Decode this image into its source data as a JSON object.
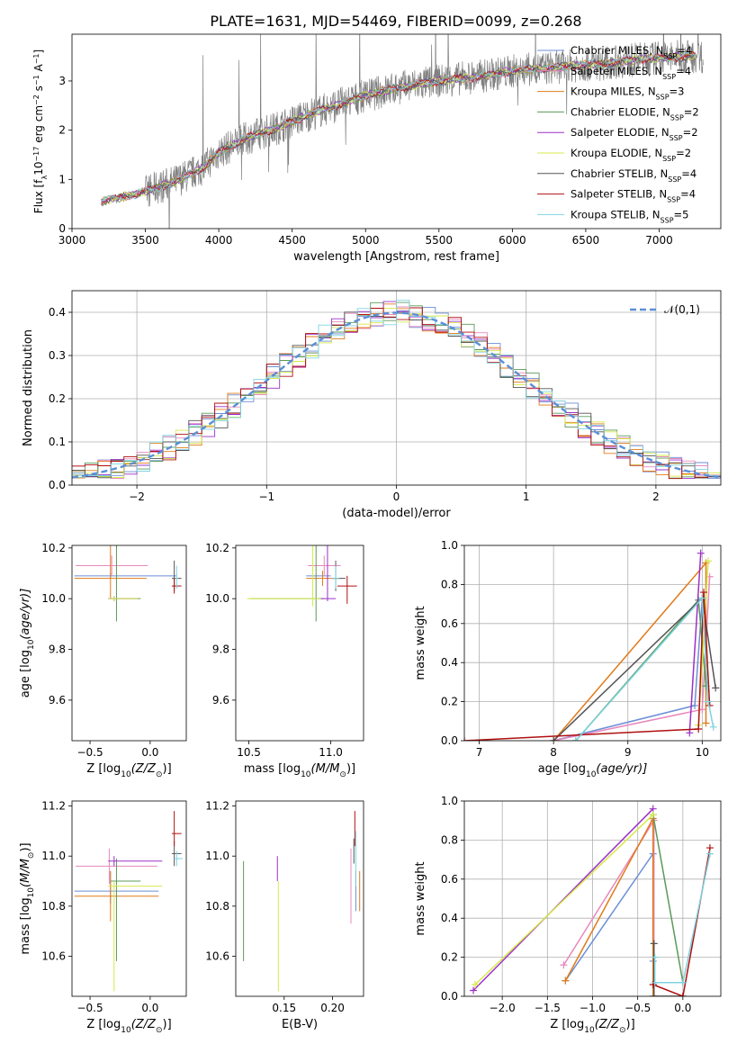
{
  "figure_title": "PLATE=1631, MJD=54469, FIBERID=0099, z=0.268",
  "series": [
    {
      "key": "cm",
      "label": "Chabrier MILES, N",
      "sub": "SSP",
      "suffix": "=4",
      "color": "#6b8fd6"
    },
    {
      "key": "sm",
      "label": "Salpeter MILES, N",
      "sub": "SSP",
      "suffix": "=4",
      "color": "#e889bd"
    },
    {
      "key": "km",
      "label": "Kroupa MILES, N",
      "sub": "SSP",
      "suffix": "=3",
      "color": "#e07b1a"
    },
    {
      "key": "ce",
      "label": "Chabrier ELODIE, N",
      "sub": "SSP",
      "suffix": "=2",
      "color": "#5a9a5a"
    },
    {
      "key": "se",
      "label": "Salpeter ELODIE, N",
      "sub": "SSP",
      "suffix": "=2",
      "color": "#9b30c8"
    },
    {
      "key": "ke",
      "label": "Kroupa ELODIE, N",
      "sub": "SSP",
      "suffix": "=2",
      "color": "#d6e84a"
    },
    {
      "key": "cs",
      "label": "Chabrier STELIB, N",
      "sub": "SSP",
      "suffix": "=4",
      "color": "#555555"
    },
    {
      "key": "ss",
      "label": "Salpeter STELIB, N",
      "sub": "SSP",
      "suffix": "=4",
      "color": "#b01010"
    },
    {
      "key": "ks",
      "label": "Kroupa STELIB, N",
      "sub": "SSP",
      "suffix": "=5",
      "color": "#7fd3e0"
    }
  ],
  "chart_data": [
    {
      "id": "spectrum",
      "type": "line",
      "xlabel": "wavelength [Angstrom, rest frame]",
      "ylabel": "Flux [f",
      "ylabel_sub": "λ",
      "ylabel_rest": "10",
      "ylabel_exp1": "−17",
      "ylabel_mid": " erg cm",
      "ylabel_exp2": "−2",
      "ylabel_mid2": " s",
      "ylabel_exp3": "−1",
      "ylabel_end": " A",
      "ylabel_exp4": "−1",
      "ylabel_close": "]",
      "xlim": [
        3000,
        7420
      ],
      "ylim": [
        0,
        3.95
      ],
      "xticks": [
        "3000",
        "3500",
        "4000",
        "4500",
        "5000",
        "5500",
        "6000",
        "6500",
        "7000"
      ],
      "yticks": [
        "0",
        "1",
        "2",
        "3"
      ],
      "data_color": "#808080",
      "continuum": {
        "x": [
          3200,
          3500,
          3600,
          3700,
          3800,
          3900,
          4000,
          4200,
          4400,
          4600,
          4800,
          5000,
          5200,
          5500,
          5800,
          6000,
          6300,
          6600,
          6900,
          7200
        ],
        "y": [
          0.55,
          0.75,
          0.85,
          0.95,
          1.1,
          1.25,
          1.55,
          1.85,
          2.05,
          2.3,
          2.5,
          2.7,
          2.85,
          3.0,
          3.1,
          3.2,
          3.28,
          3.35,
          3.45,
          3.5
        ]
      },
      "grid": false,
      "legend": "top-right"
    },
    {
      "id": "residuals",
      "type": "step",
      "xlabel": "(data-model)/error",
      "ylabel": "Normed distribution",
      "xlim": [
        -2.5,
        2.5
      ],
      "ylim": [
        0,
        0.45
      ],
      "xticks": [
        "−2",
        "−1",
        "0",
        "1",
        "2"
      ],
      "yticks": [
        "0.0",
        "0.1",
        "0.2",
        "0.3",
        "0.4"
      ],
      "bin_width": 0.1,
      "reference": {
        "label": "𝒩(0,1)",
        "mu": 0,
        "sigma": 1,
        "color": "#5b8fd6"
      },
      "grid": true,
      "legend": "top-right"
    },
    {
      "id": "age_vs_Z",
      "type": "errorbar",
      "xlabel": "Z [log",
      "xlabel_sub": "10",
      "xlabel_rest": "(Z/Z",
      "xlabel_sun": "⊙",
      "xlabel_close": ")]",
      "ylabel": "age  [log",
      "ylabel_sub": "10",
      "ylabel_rest": "(age/yr)]",
      "xlim": [
        -0.65,
        0.3
      ],
      "ylim": [
        9.44,
        10.21
      ],
      "xticks": [
        "−0.5",
        "0.0"
      ],
      "yticks": [
        "9.6",
        "9.8",
        "10.0",
        "10.2"
      ],
      "points": [
        {
          "s": "cm",
          "x": -0.33,
          "y": 10.09,
          "xerr": [
            0.3,
            0.55
          ],
          "yerr": [
            0.01,
            0.01
          ]
        },
        {
          "s": "sm",
          "x": -0.32,
          "y": 10.13,
          "xerr": [
            0.3,
            0.3
          ],
          "yerr": [
            0.04,
            0.04
          ]
        },
        {
          "s": "km",
          "x": -0.33,
          "y": 10.08,
          "xerr": [
            0.3,
            0.3
          ],
          "yerr": [
            0.08,
            0.6
          ]
        },
        {
          "s": "ce",
          "x": -0.28,
          "y": 10.0,
          "xerr": [
            0.05,
            0.2
          ],
          "yerr": [
            0.09,
            0.42
          ]
        },
        {
          "s": "se",
          "x": -0.3,
          "y": 10.0,
          "xerr": [
            0.05,
            0.2
          ],
          "yerr": [
            0.01,
            0.01
          ]
        },
        {
          "s": "ke",
          "x": -0.3,
          "y": 10.0,
          "xerr": [
            0.05,
            0.2
          ],
          "yerr": [
            0.01,
            0.01
          ]
        },
        {
          "s": "cs",
          "x": 0.2,
          "y": 10.08,
          "xerr": [
            0.02,
            0.06
          ],
          "yerr": [
            0.05,
            0.07
          ]
        },
        {
          "s": "ss",
          "x": 0.2,
          "y": 10.05,
          "xerr": [
            0.02,
            0.06
          ],
          "yerr": [
            0.03,
            0.03
          ]
        },
        {
          "s": "ks",
          "x": 0.22,
          "y": 10.08,
          "xerr": [
            0.01,
            0.01
          ],
          "yerr": [
            0.04,
            0.05
          ]
        }
      ]
    },
    {
      "id": "age_vs_mass",
      "type": "errorbar",
      "xlabel": "mass [log",
      "xlabel_sub": "10",
      "xlabel_rest": "(M/M",
      "xlabel_sun": "⊙",
      "xlabel_close": ")]",
      "xlim": [
        10.42,
        11.2
      ],
      "ylim": [
        9.44,
        10.21
      ],
      "xticks": [
        "10.5",
        "11.0"
      ],
      "yticks": [
        "9.6",
        "9.8",
        "10.0",
        "10.2"
      ],
      "points": [
        {
          "s": "cm",
          "x": 10.95,
          "y": 10.09,
          "xerr": [
            0.1,
            0.05
          ],
          "yerr": [
            0.01,
            0.01
          ]
        },
        {
          "s": "sm",
          "x": 10.96,
          "y": 10.13,
          "xerr": [
            0.1,
            0.1
          ],
          "yerr": [
            0.04,
            0.04
          ]
        },
        {
          "s": "km",
          "x": 10.95,
          "y": 10.08,
          "xerr": [
            0.1,
            0.1
          ],
          "yerr": [
            0.03,
            0.03
          ]
        },
        {
          "s": "ce",
          "x": 10.91,
          "y": 10.0,
          "xerr": [
            0.4,
            0.05
          ],
          "yerr": [
            0.09,
            0.42
          ]
        },
        {
          "s": "se",
          "x": 10.98,
          "y": 10.0,
          "xerr": [
            0.05,
            0.05
          ],
          "yerr": [
            0.01,
            0.52
          ]
        },
        {
          "s": "ke",
          "x": 10.89,
          "y": 10.0,
          "xerr": [
            0.4,
            0.05
          ],
          "yerr": [
            0.03,
            0.53
          ]
        },
        {
          "s": "cs",
          "x": 11.03,
          "y": 10.08,
          "xerr": [
            0.02,
            0.06
          ],
          "yerr": [
            0.05,
            0.07
          ]
        },
        {
          "s": "ss",
          "x": 11.1,
          "y": 10.05,
          "xerr": [
            0.06,
            0.06
          ],
          "yerr": [
            0.07,
            0.04
          ]
        },
        {
          "s": "ks",
          "x": 11.03,
          "y": 10.08,
          "xerr": [
            0.02,
            0.02
          ],
          "yerr": [
            0.04,
            0.05
          ]
        }
      ]
    },
    {
      "id": "weight_vs_age",
      "type": "line",
      "xlabel": "age  [log",
      "xlabel_sub": "10",
      "xlabel_rest": "(age/yr)]",
      "ylabel": "mass weight",
      "xlim": [
        6.8,
        10.25
      ],
      "ylim": [
        0,
        1
      ],
      "xticks": [
        "7",
        "8",
        "9",
        "10"
      ],
      "yticks": [
        "0.0",
        "0.2",
        "0.4",
        "0.6",
        "0.8",
        "1.0"
      ],
      "grid": true,
      "lines": [
        {
          "s": "cm",
          "x": [
            8.0,
            9.9,
            10.0
          ],
          "y": [
            0.0,
            0.18,
            0.72
          ]
        },
        {
          "s": "sm",
          "x": [
            8.0,
            10.0,
            10.1
          ],
          "y": [
            0.0,
            0.16,
            0.84
          ]
        },
        {
          "s": "km",
          "x": [
            8.0,
            10.05,
            10.05
          ],
          "y": [
            0.0,
            0.91,
            0.09
          ]
        },
        {
          "s": "ce",
          "x": [
            8.3,
            9.95,
            10.05
          ],
          "y": [
            0.0,
            0.72,
            0.28
          ]
        },
        {
          "s": "se",
          "x": [
            9.83,
            9.98
          ],
          "y": [
            0.04,
            0.96
          ]
        },
        {
          "s": "ke",
          "x": [
            9.95,
            10.08
          ],
          "y": [
            0.08,
            0.92
          ]
        },
        {
          "s": "cs",
          "x": [
            8.0,
            10.0,
            10.18
          ],
          "y": [
            0.0,
            0.73,
            0.27
          ]
        },
        {
          "s": "ss",
          "x": [
            6.8,
            9.95,
            10.02,
            10.1
          ],
          "y": [
            0.0,
            0.06,
            0.76,
            0.18
          ]
        },
        {
          "s": "ks",
          "x": [
            8.3,
            10.0,
            10.08,
            10.15
          ],
          "y": [
            0.0,
            0.73,
            0.2,
            0.07
          ]
        }
      ]
    },
    {
      "id": "mass_vs_Z",
      "type": "errorbar",
      "xlabel": "Z [log",
      "xlabel_sub": "10",
      "xlabel_rest": "(Z/Z",
      "xlabel_sun": "⊙",
      "xlabel_close": ")]",
      "ylabel": "mass [log",
      "ylabel_sub": "10",
      "ylabel_rest": "(M/M",
      "ylabel_sun": "⊙",
      "ylabel_close": ")]",
      "xlim": [
        -0.65,
        0.3
      ],
      "ylim": [
        10.44,
        11.22
      ],
      "xticks": [
        "−0.5",
        "0.0"
      ],
      "yticks": [
        "10.6",
        "10.8",
        "11.0",
        "11.2"
      ],
      "points": [
        {
          "s": "cm",
          "x": -0.33,
          "y": 10.86,
          "xerr": [
            0.3,
            0.4
          ],
          "yerr": [
            0.05,
            0.08
          ]
        },
        {
          "s": "sm",
          "x": -0.34,
          "y": 10.96,
          "xerr": [
            0.28,
            0.4
          ],
          "yerr": [
            0.07,
            0.07
          ]
        },
        {
          "s": "km",
          "x": -0.33,
          "y": 10.84,
          "xerr": [
            0.3,
            0.4
          ],
          "yerr": [
            0.1,
            0.1
          ]
        },
        {
          "s": "ce",
          "x": -0.28,
          "y": 10.9,
          "xerr": [
            0.05,
            0.2
          ],
          "yerr": [
            0.32,
            0.09
          ]
        },
        {
          "s": "se",
          "x": -0.3,
          "y": 10.98,
          "xerr": [
            0.05,
            0.4
          ],
          "yerr": [
            0.02,
            0.02
          ]
        },
        {
          "s": "ke",
          "x": -0.3,
          "y": 10.88,
          "xerr": [
            0.05,
            0.4
          ],
          "yerr": [
            0.42,
            0.02
          ]
        },
        {
          "s": "cs",
          "x": 0.2,
          "y": 11.01,
          "xerr": [
            0.02,
            0.06
          ],
          "yerr": [
            0.05,
            0.05
          ]
        },
        {
          "s": "ss",
          "x": 0.2,
          "y": 11.09,
          "xerr": [
            0.02,
            0.06
          ],
          "yerr": [
            0.05,
            0.09
          ]
        },
        {
          "s": "ks",
          "x": 0.22,
          "y": 10.99,
          "xerr": [
            0.02,
            0.05
          ],
          "yerr": [
            0.03,
            0.03
          ]
        }
      ]
    },
    {
      "id": "mass_vs_EBV",
      "type": "errorbar",
      "xlabel": "E(B-V)",
      "xlim": [
        0.1,
        0.232
      ],
      "ylim": [
        10.44,
        11.22
      ],
      "xticks": [
        "0.15",
        "0.20"
      ],
      "yticks": [
        "10.6",
        "10.8",
        "11.0",
        "11.2"
      ],
      "points": [
        {
          "s": "cm",
          "x": 0.224,
          "y": 10.86,
          "xerr": [
            0,
            0
          ],
          "yerr": [
            0.08,
            0.08
          ]
        },
        {
          "s": "sm",
          "x": 0.219,
          "y": 10.88,
          "xerr": [
            0,
            0
          ],
          "yerr": [
            0.15,
            0.15
          ]
        },
        {
          "s": "km",
          "x": 0.228,
          "y": 10.86,
          "xerr": [
            0,
            0
          ],
          "yerr": [
            0.08,
            0.08
          ]
        },
        {
          "s": "ce",
          "x": 0.108,
          "y": 10.78,
          "xerr": [
            0,
            0
          ],
          "yerr": [
            0.2,
            0.2
          ]
        },
        {
          "s": "se",
          "x": 0.143,
          "y": 10.95,
          "xerr": [
            0,
            0
          ],
          "yerr": [
            0.05,
            0.05
          ]
        },
        {
          "s": "ke",
          "x": 0.144,
          "y": 10.7,
          "xerr": [
            0,
            0
          ],
          "yerr": [
            0.24,
            0.2
          ]
        },
        {
          "s": "cs",
          "x": 0.222,
          "y": 11.02,
          "xerr": [
            0,
            0
          ],
          "yerr": [
            0.05,
            0.05
          ]
        },
        {
          "s": "ss",
          "x": 0.223,
          "y": 11.1,
          "xerr": [
            0,
            0
          ],
          "yerr": [
            0.06,
            0.08
          ]
        },
        {
          "s": "ks",
          "x": 0.224,
          "y": 10.98,
          "xerr": [
            0,
            0
          ],
          "yerr": [
            0.1,
            0.12
          ]
        }
      ]
    },
    {
      "id": "weight_vs_Z",
      "type": "line",
      "xlabel": "Z [log",
      "xlabel_sub": "10",
      "xlabel_rest": "(Z/Z",
      "xlabel_sun": "⊙",
      "xlabel_close": ")]",
      "ylabel": "mass weight",
      "xlim": [
        -2.42,
        0.42
      ],
      "ylim": [
        0,
        1
      ],
      "xticks": [
        "−2.0",
        "−1.5",
        "−1.0",
        "−0.5",
        "0.0"
      ],
      "yticks": [
        "0.0",
        "0.2",
        "0.4",
        "0.6",
        "0.8",
        "1.0"
      ],
      "grid": true,
      "lines": [
        {
          "s": "cm",
          "x": [
            -1.3,
            -0.33,
            -0.33
          ],
          "y": [
            0.08,
            0.73,
            0.18
          ]
        },
        {
          "s": "sm",
          "x": [
            -1.32,
            -0.32,
            -0.32
          ],
          "y": [
            0.16,
            0.9,
            0.0
          ]
        },
        {
          "s": "km",
          "x": [
            -1.3,
            -0.33,
            -0.33
          ],
          "y": [
            0.08,
            0.91,
            0.0
          ]
        },
        {
          "s": "ce",
          "x": [
            -0.33,
            0.0
          ],
          "y": [
            0.93,
            0.07
          ]
        },
        {
          "s": "se",
          "x": [
            -2.32,
            -0.33
          ],
          "y": [
            0.03,
            0.96
          ]
        },
        {
          "s": "ke",
          "x": [
            -2.3,
            -0.33
          ],
          "y": [
            0.06,
            0.93
          ]
        },
        {
          "s": "cs",
          "x": [
            -0.32,
            -0.32,
            0.0
          ],
          "y": [
            0.27,
            0.0,
            0.0
          ]
        },
        {
          "s": "ss",
          "x": [
            -0.33,
            0.0,
            0.3
          ],
          "y": [
            0.06,
            0.0,
            0.76
          ]
        },
        {
          "s": "ks",
          "x": [
            -0.31,
            -0.31,
            0.0,
            0.3
          ],
          "y": [
            0.2,
            0.07,
            0.07,
            0.73
          ]
        }
      ]
    }
  ]
}
